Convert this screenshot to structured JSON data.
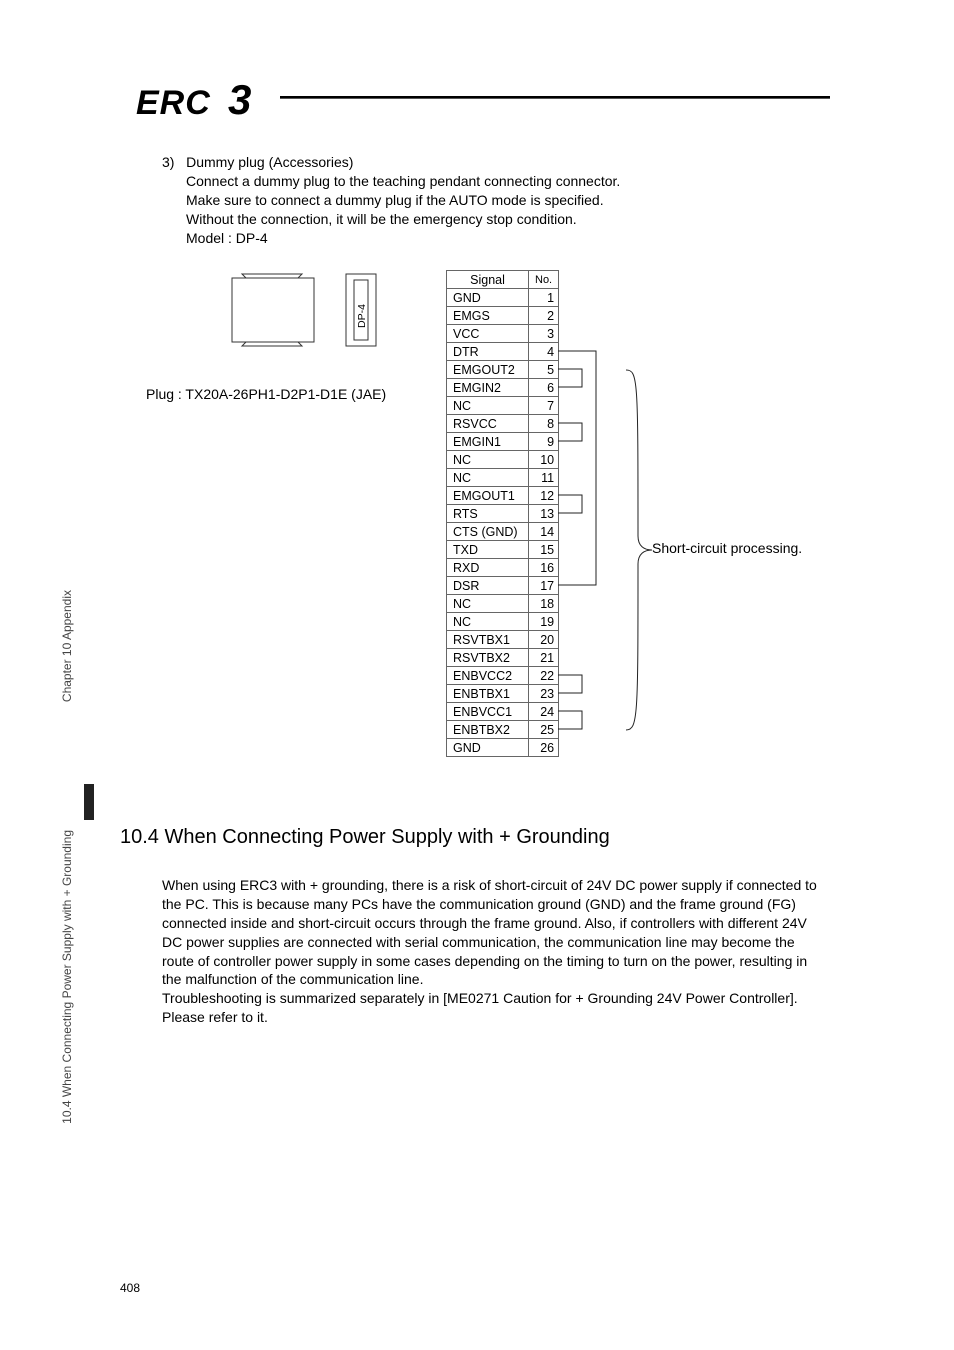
{
  "logo": {
    "text": "ERC",
    "numeral": "3"
  },
  "item3": {
    "num": "3)",
    "title": "Dummy plug (Accessories)",
    "lines": [
      "Connect a dummy plug to the teaching pendant connecting connector.",
      "Make sure to connect a dummy plug if the AUTO mode is specified.",
      "Without the connection, it will be the emergency stop condition.",
      "Model : DP-4"
    ]
  },
  "plug_diagram": {
    "label": "DP-4"
  },
  "plug_text": "Plug : TX20A-26PH1-D2P1-D1E (JAE)",
  "pin_table": {
    "signal_header": "Signal",
    "no_header": "No.",
    "rows": [
      {
        "sig": "GND",
        "no": "1"
      },
      {
        "sig": "EMGS",
        "no": "2"
      },
      {
        "sig": "VCC",
        "no": "3"
      },
      {
        "sig": "DTR",
        "no": "4"
      },
      {
        "sig": "EMGOUT2",
        "no": "5"
      },
      {
        "sig": "EMGIN2",
        "no": "6"
      },
      {
        "sig": "NC",
        "no": "7"
      },
      {
        "sig": "RSVCC",
        "no": "8"
      },
      {
        "sig": "EMGIN1",
        "no": "9"
      },
      {
        "sig": "NC",
        "no": "10"
      },
      {
        "sig": "NC",
        "no": "11"
      },
      {
        "sig": "EMGOUT1",
        "no": "12"
      },
      {
        "sig": "RTS",
        "no": "13"
      },
      {
        "sig": "CTS (GND)",
        "no": "14"
      },
      {
        "sig": "TXD",
        "no": "15"
      },
      {
        "sig": "RXD",
        "no": "16"
      },
      {
        "sig": "DSR",
        "no": "17"
      },
      {
        "sig": "NC",
        "no": "18"
      },
      {
        "sig": "NC",
        "no": "19"
      },
      {
        "sig": "RSVTBX1",
        "no": "20"
      },
      {
        "sig": "RSVTBX2",
        "no": "21"
      },
      {
        "sig": "ENBVCC2",
        "no": "22"
      },
      {
        "sig": "ENBTBX1",
        "no": "23"
      },
      {
        "sig": "ENBVCC1",
        "no": "24"
      },
      {
        "sig": "ENBTBX2",
        "no": "25"
      },
      {
        "sig": "GND",
        "no": "26"
      }
    ]
  },
  "short_label": "Short-circuit processing.",
  "section": {
    "heading": "10.4  When Connecting Power Supply with + Grounding",
    "body": "When using ERC3 with + grounding, there is a risk of short-circuit of 24V DC power supply if connected to the PC. This is because many PCs have the communication ground (GND) and the frame ground (FG) connected inside and short-circuit occurs through the frame ground. Also, if controllers with different 24V DC power supplies are connected with serial communication, the communication line may become the route of controller power supply in some cases depending on the timing to turn on the power, resulting in the malfunction of the communication line.",
    "body2": "Troubleshooting is summarized separately in [ME0271 Caution for + Grounding 24V Power Controller]. Please refer to it."
  },
  "side_tabs": {
    "tab1": "Chapter 10 Appendix",
    "tab2": "10.4 When Connecting Power Supply with + Grounding"
  },
  "page_num": "408",
  "colors": {
    "text": "#000000",
    "border": "#666666",
    "bg": "#ffffff"
  }
}
